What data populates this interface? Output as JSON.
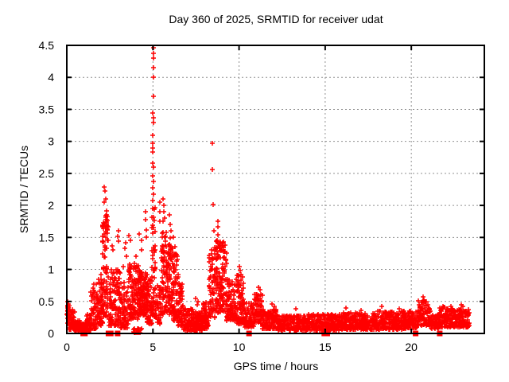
{
  "chart_data": {
    "type": "scatter",
    "title": "Day 360 of 2025, SRMTID for receiver udat",
    "xlabel": "GPS time / hours",
    "ylabel": "SRMTID / TECUs",
    "xlim": [
      0,
      24.24
    ],
    "ylim": [
      0,
      4.5
    ],
    "xticks": [
      0,
      5,
      10,
      15,
      20
    ],
    "yticks": [
      0,
      0.5,
      1,
      1.5,
      2,
      2.5,
      3,
      3.5,
      4,
      4.5
    ],
    "grid": true,
    "legend": "none",
    "marker": "plus",
    "marker_color": "#ff0000",
    "grid_color": "#909090",
    "border_color": "#000000",
    "seed": 42,
    "spike_points": [
      [
        5.02,
        4.46
      ],
      [
        5.02,
        4.38
      ],
      [
        5.03,
        4.3
      ],
      [
        5.02,
        4.15
      ],
      [
        5.03,
        4.0
      ],
      [
        5.02,
        3.7
      ],
      [
        5.0,
        3.44
      ],
      [
        5.02,
        3.37
      ],
      [
        5.03,
        3.29
      ],
      [
        5.0,
        3.1
      ],
      [
        4.98,
        2.97
      ],
      [
        4.99,
        2.9
      ],
      [
        4.97,
        2.84
      ],
      [
        5.0,
        2.66
      ],
      [
        5.02,
        2.6
      ],
      [
        5.0,
        2.46
      ],
      [
        5.03,
        2.37
      ],
      [
        5.0,
        2.28
      ],
      [
        5.04,
        2.18
      ],
      [
        5.0,
        2.08
      ],
      [
        2.18,
        2.29
      ],
      [
        2.21,
        2.23
      ],
      [
        2.24,
        2.1
      ],
      [
        2.19,
        2.05
      ],
      [
        2.62,
        1.37
      ],
      [
        2.66,
        1.3
      ],
      [
        2.95,
        1.52
      ],
      [
        3.0,
        1.6
      ],
      [
        2.98,
        1.44
      ],
      [
        3.3,
        1.05
      ],
      [
        3.38,
        1.33
      ],
      [
        3.42,
        1.42
      ],
      [
        3.45,
        1.2
      ],
      [
        3.62,
        1.53
      ],
      [
        3.7,
        1.45
      ],
      [
        4.0,
        1.2
      ],
      [
        4.2,
        1.56
      ],
      [
        4.32,
        1.45
      ],
      [
        4.36,
        1.3
      ],
      [
        4.55,
        1.9
      ],
      [
        4.57,
        1.78
      ],
      [
        4.6,
        1.62
      ],
      [
        4.62,
        1.5
      ],
      [
        5.4,
        2.05
      ],
      [
        5.42,
        1.9
      ],
      [
        5.38,
        1.75
      ],
      [
        5.6,
        2.1
      ],
      [
        5.63,
        2.0
      ],
      [
        5.65,
        1.9
      ],
      [
        5.7,
        1.8
      ],
      [
        5.58,
        1.75
      ],
      [
        5.95,
        1.85
      ],
      [
        6.0,
        1.7
      ],
      [
        6.05,
        1.6
      ],
      [
        6.2,
        1.5
      ],
      [
        6.3,
        1.35
      ],
      [
        7.5,
        0.55
      ],
      [
        7.6,
        0.5
      ],
      [
        7.55,
        0.45
      ],
      [
        8.45,
        2.97
      ],
      [
        8.46,
        2.56
      ],
      [
        8.48,
        2.02
      ],
      [
        8.52,
        1.6
      ],
      [
        8.4,
        1.3
      ],
      [
        8.75,
        1.75
      ],
      [
        8.75,
        1.67
      ],
      [
        8.76,
        1.54
      ],
      [
        8.73,
        1.46
      ],
      [
        8.72,
        1.33
      ],
      [
        9.27,
        1.26
      ],
      [
        9.28,
        1.1
      ],
      [
        10.0,
        1.05
      ],
      [
        10.05,
        0.98
      ],
      [
        10.1,
        0.92
      ],
      [
        11.15,
        0.72
      ],
      [
        11.2,
        0.68
      ],
      [
        11.9,
        0.46
      ],
      [
        12.05,
        0.42
      ],
      [
        13.3,
        0.38
      ],
      [
        16.2,
        0.4
      ],
      [
        17.1,
        0.36
      ],
      [
        18.3,
        0.42
      ],
      [
        19.3,
        0.38
      ],
      [
        20.7,
        0.57
      ],
      [
        20.75,
        0.52
      ],
      [
        20.78,
        0.5
      ],
      [
        22.9,
        0.45
      ],
      [
        23.0,
        0.42
      ],
      [
        0.05,
        0.5
      ],
      [
        0.08,
        0.46
      ],
      [
        1.38,
        0.65
      ],
      [
        1.42,
        0.58
      ],
      [
        1.55,
        0.65
      ]
    ],
    "clusters": [
      [
        0.02,
        0.15,
        28,
        0.15,
        0.48,
        1.1
      ],
      [
        0.12,
        0.45,
        60,
        0.06,
        0.38,
        1.4
      ],
      [
        0.45,
        0.8,
        60,
        0.04,
        0.2,
        1.4
      ],
      [
        0.8,
        1.15,
        55,
        0.02,
        0.15,
        1.3
      ],
      [
        1.15,
        1.45,
        50,
        0.05,
        0.3,
        1.4
      ],
      [
        1.4,
        1.7,
        45,
        0.08,
        0.8,
        1.8
      ],
      [
        1.7,
        2.0,
        50,
        0.12,
        1.0,
        1.7
      ],
      [
        1.95,
        2.12,
        28,
        0.15,
        0.8,
        1.5
      ],
      [
        2.08,
        2.4,
        70,
        0.25,
        1.78,
        1.5
      ],
      [
        2.22,
        2.38,
        16,
        1.58,
        1.92,
        1.0
      ],
      [
        2.4,
        3.1,
        120,
        0.12,
        1.0,
        1.7
      ],
      [
        3.1,
        3.6,
        75,
        0.08,
        0.8,
        1.6
      ],
      [
        3.6,
        4.15,
        115,
        0.22,
        1.1,
        1.3
      ],
      [
        3.85,
        4.35,
        22,
        0.01,
        0.08,
        1.0
      ],
      [
        4.15,
        4.65,
        125,
        0.28,
        1.0,
        1.2
      ],
      [
        4.65,
        4.95,
        60,
        0.15,
        0.85,
        1.5
      ],
      [
        4.95,
        5.15,
        55,
        0.25,
        2.0,
        1.4
      ],
      [
        5.15,
        5.5,
        50,
        0.15,
        0.75,
        1.5
      ],
      [
        5.5,
        5.85,
        85,
        0.3,
        1.6,
        1.3
      ],
      [
        5.85,
        6.15,
        75,
        0.3,
        1.5,
        1.2
      ],
      [
        6.15,
        6.45,
        70,
        0.2,
        1.25,
        1.4
      ],
      [
        6.45,
        6.75,
        60,
        0.12,
        0.8,
        1.6
      ],
      [
        6.75,
        7.35,
        95,
        0.04,
        0.4,
        1.5
      ],
      [
        7.35,
        7.85,
        95,
        0.05,
        0.35,
        1.6
      ],
      [
        7.85,
        8.25,
        75,
        0.07,
        0.5,
        1.7
      ],
      [
        8.25,
        8.6,
        60,
        0.25,
        1.35,
        1.4
      ],
      [
        8.6,
        9.25,
        130,
        0.3,
        1.45,
        1.35
      ],
      [
        9.25,
        9.85,
        90,
        0.2,
        0.85,
        1.5
      ],
      [
        9.85,
        10.25,
        70,
        0.15,
        0.92,
        1.4
      ],
      [
        10.25,
        10.85,
        80,
        0.1,
        0.5,
        1.4
      ],
      [
        10.85,
        11.35,
        80,
        0.15,
        0.62,
        1.3
      ],
      [
        11.35,
        12.2,
        120,
        0.07,
        0.38,
        1.4
      ],
      [
        12.2,
        14.0,
        235,
        0.05,
        0.28,
        1.3
      ],
      [
        14.0,
        16.0,
        265,
        0.05,
        0.3,
        1.3
      ],
      [
        16.0,
        18.0,
        265,
        0.06,
        0.32,
        1.3
      ],
      [
        18.0,
        19.6,
        215,
        0.06,
        0.35,
        1.3
      ],
      [
        19.6,
        20.4,
        105,
        0.08,
        0.35,
        1.3
      ],
      [
        20.4,
        21.1,
        95,
        0.12,
        0.52,
        1.2
      ],
      [
        21.1,
        21.6,
        65,
        0.08,
        0.3,
        1.3
      ],
      [
        21.6,
        22.4,
        105,
        0.1,
        0.42,
        1.4
      ],
      [
        22.4,
        23.35,
        135,
        0.1,
        0.38,
        1.3
      ]
    ],
    "zero_squares": [
      0.95,
      1.05,
      2.42,
      2.55,
      2.95,
      10.58,
      14.95,
      15.12,
      20.25,
      21.65
    ]
  }
}
